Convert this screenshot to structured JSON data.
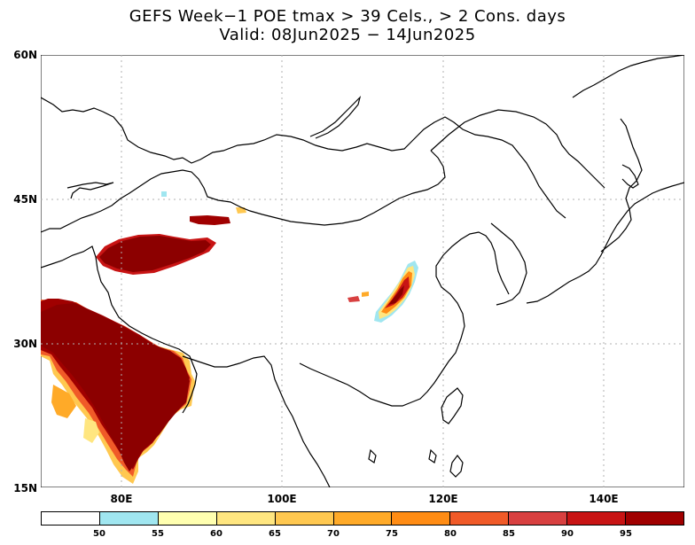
{
  "title": {
    "line1": "GEFS Week−1 POE tmax > 39 Cels., > 2 Cons. days",
    "line2": "Valid: 08Jun2025 − 14Jun2025"
  },
  "map": {
    "lat_labels": [
      "60N",
      "45N",
      "30N",
      "15N"
    ],
    "lon_labels": [
      "80E",
      "100E",
      "120E",
      "140E"
    ],
    "colors": {
      "coast": "#000000",
      "grid": "#b0b0b0",
      "p50": "#a0e6f0",
      "p55": "#ffffb0",
      "p60": "#ffe680",
      "p65": "#ffc850",
      "p70": "#ffaa28",
      "p75": "#ff8c14",
      "p80": "#f05a28",
      "p85": "#d84040",
      "p90": "#c81414",
      "p95": "#a00000",
      "p95plus": "#8c0000"
    }
  },
  "colorbar": {
    "labels": [
      "50",
      "55",
      "60",
      "65",
      "70",
      "75",
      "80",
      "85",
      "90",
      "95"
    ],
    "colors": [
      "#ffffff",
      "#a0e6f0",
      "#ffffb0",
      "#ffe680",
      "#ffc850",
      "#ffaa28",
      "#ff8c14",
      "#f05a28",
      "#d84040",
      "#c81414",
      "#a00000",
      "#8c0000"
    ]
  }
}
